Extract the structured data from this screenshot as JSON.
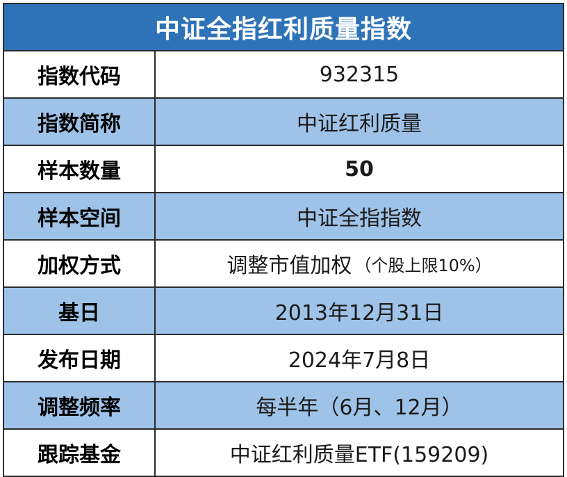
{
  "title": "中证全指红利质量指数",
  "rows": [
    {
      "label": "指数代码",
      "value": "932315"
    },
    {
      "label": "指数简称",
      "value": "中证红利质量"
    },
    {
      "label": "样本数量",
      "value": "50"
    },
    {
      "label": "样本空间",
      "value": "中证全指指数"
    },
    {
      "label": "加权方式",
      "value": "调整市值加权",
      "note": "（个股上限10%）"
    },
    {
      "label": "基日",
      "value": "2013年12月31日"
    },
    {
      "label": "发布日期",
      "value": "2024年7月8日"
    },
    {
      "label": "调整频率",
      "value": "每半年（6月、12月）"
    },
    {
      "label": "跟踪基金",
      "value": "中证红利质量ETF(159209)"
    }
  ],
  "colors": {
    "title_bg": "#2e73b8",
    "alt_row_bg": "#9fc3e8",
    "border": "#2b2b2b"
  }
}
